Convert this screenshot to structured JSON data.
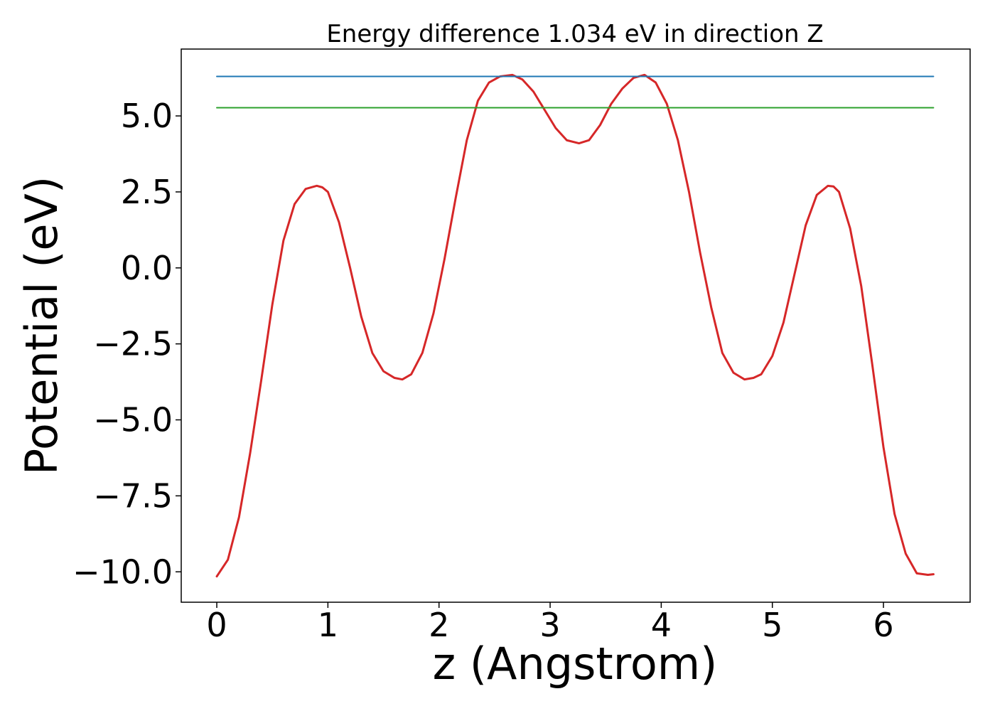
{
  "chart_data": {
    "type": "line",
    "title": "Energy difference 1.034 eV in direction Z",
    "xlabel": "z (Angstrom)",
    "ylabel": "Potential (eV)",
    "xlim": [
      -0.32,
      6.78
    ],
    "ylim": [
      -11.0,
      7.2
    ],
    "xticks": [
      0,
      1,
      2,
      3,
      4,
      5,
      6
    ],
    "xtick_labels": [
      "0",
      "1",
      "2",
      "3",
      "4",
      "5",
      "6"
    ],
    "yticks": [
      5.0,
      2.5,
      0.0,
      -2.5,
      -5.0,
      -7.5,
      -10.0
    ],
    "ytick_labels": [
      "5.0",
      "2.5",
      "0.0",
      "−2.5",
      "−5.0",
      "−7.5",
      "−10.0"
    ],
    "grid": false,
    "series": [
      {
        "color": "#d62728",
        "x": [
          0.0,
          0.1,
          0.2,
          0.3,
          0.4,
          0.5,
          0.6,
          0.7,
          0.8,
          0.9,
          0.95,
          1.0,
          1.1,
          1.2,
          1.3,
          1.4,
          1.5,
          1.6,
          1.67,
          1.75,
          1.85,
          1.95,
          2.05,
          2.15,
          2.25,
          2.35,
          2.45,
          2.55,
          2.66,
          2.75,
          2.85,
          2.95,
          3.05,
          3.15,
          3.26,
          3.35,
          3.45,
          3.55,
          3.65,
          3.75,
          3.85,
          3.95,
          4.05,
          4.15,
          4.25,
          4.35,
          4.45,
          4.55,
          4.65,
          4.75,
          4.83,
          4.9,
          5.0,
          5.1,
          5.2,
          5.3,
          5.4,
          5.5,
          5.55,
          5.6,
          5.7,
          5.8,
          5.9,
          6.0,
          6.1,
          6.2,
          6.3,
          6.4,
          6.45
        ],
        "y": [
          -10.15,
          -9.6,
          -8.2,
          -6.1,
          -3.7,
          -1.2,
          0.9,
          2.1,
          2.6,
          2.7,
          2.65,
          2.5,
          1.5,
          0.0,
          -1.6,
          -2.8,
          -3.4,
          -3.62,
          -3.67,
          -3.5,
          -2.8,
          -1.5,
          0.3,
          2.3,
          4.2,
          5.5,
          6.1,
          6.3,
          6.35,
          6.2,
          5.8,
          5.2,
          4.6,
          4.2,
          4.1,
          4.2,
          4.7,
          5.4,
          5.9,
          6.25,
          6.35,
          6.1,
          5.4,
          4.2,
          2.5,
          0.5,
          -1.3,
          -2.8,
          -3.45,
          -3.67,
          -3.62,
          -3.5,
          -2.9,
          -1.8,
          -0.2,
          1.4,
          2.4,
          2.7,
          2.68,
          2.5,
          1.3,
          -0.6,
          -3.2,
          -5.9,
          -8.1,
          -9.4,
          -10.05,
          -10.1,
          -10.08
        ]
      },
      {
        "color": "#1f77b4",
        "x": [
          0.0,
          6.45
        ],
        "y": [
          6.3,
          6.3
        ]
      },
      {
        "color": "#2ca02c",
        "x": [
          0.0,
          6.45
        ],
        "y": [
          5.27,
          5.27
        ]
      }
    ]
  }
}
